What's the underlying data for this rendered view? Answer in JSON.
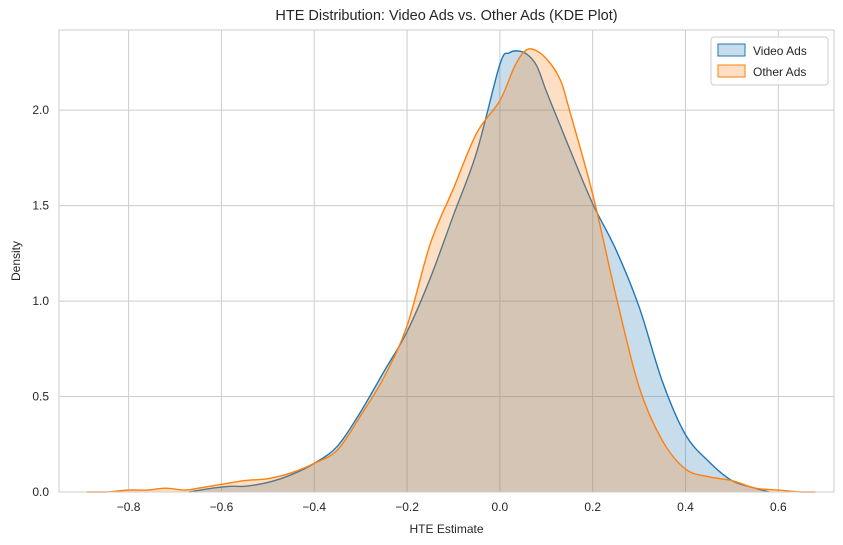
{
  "chart_data": {
    "type": "area",
    "title": "HTE Distribution: Video Ads vs. Other Ads (KDE Plot)",
    "xlabel": "HTE Estimate",
    "ylabel": "Density",
    "xlim": [
      -0.95,
      0.72
    ],
    "ylim": [
      0,
      2.42
    ],
    "xticks": [
      -0.8,
      -0.6,
      -0.4,
      -0.2,
      0.0,
      0.2,
      0.4,
      0.6
    ],
    "xtick_labels": [
      "−0.8",
      "−0.6",
      "−0.4",
      "−0.2",
      "0.0",
      "0.2",
      "0.4",
      "0.6"
    ],
    "yticks": [
      0.0,
      0.5,
      1.0,
      1.5,
      2.0
    ],
    "ytick_labels": [
      "0.0",
      "0.5",
      "1.0",
      "1.5",
      "2.0"
    ],
    "grid": true,
    "legend_position": "top-right",
    "series": [
      {
        "name": "Video Ads",
        "color": "#1f77b4",
        "fill_opacity": 0.25,
        "x": [
          -0.67,
          -0.62,
          -0.58,
          -0.55,
          -0.5,
          -0.45,
          -0.4,
          -0.35,
          -0.3,
          -0.25,
          -0.2,
          -0.15,
          -0.1,
          -0.05,
          0.0,
          0.02,
          0.04,
          0.06,
          0.08,
          0.1,
          0.13,
          0.15,
          0.2,
          0.25,
          0.3,
          0.35,
          0.4,
          0.45,
          0.5,
          0.55,
          0.58
        ],
        "y": [
          0.0,
          0.02,
          0.03,
          0.03,
          0.05,
          0.09,
          0.15,
          0.24,
          0.42,
          0.63,
          0.84,
          1.12,
          1.45,
          1.78,
          2.24,
          2.3,
          2.31,
          2.29,
          2.23,
          2.1,
          1.92,
          1.8,
          1.51,
          1.27,
          0.97,
          0.58,
          0.3,
          0.16,
          0.06,
          0.02,
          0.0
        ]
      },
      {
        "name": "Other Ads",
        "color": "#ff7f0e",
        "fill_opacity": 0.25,
        "x": [
          -0.89,
          -0.85,
          -0.8,
          -0.76,
          -0.72,
          -0.68,
          -0.65,
          -0.6,
          -0.55,
          -0.5,
          -0.45,
          -0.4,
          -0.35,
          -0.3,
          -0.25,
          -0.2,
          -0.15,
          -0.1,
          -0.05,
          0.0,
          0.03,
          0.05,
          0.07,
          0.1,
          0.13,
          0.15,
          0.2,
          0.25,
          0.3,
          0.35,
          0.4,
          0.45,
          0.5,
          0.55,
          0.6,
          0.65,
          0.68
        ],
        "y": [
          0.0,
          0.0,
          0.01,
          0.01,
          0.02,
          0.01,
          0.02,
          0.04,
          0.06,
          0.07,
          0.1,
          0.15,
          0.22,
          0.4,
          0.6,
          0.87,
          1.3,
          1.59,
          1.88,
          2.05,
          2.22,
          2.3,
          2.32,
          2.27,
          2.16,
          2.0,
          1.56,
          1.03,
          0.55,
          0.27,
          0.12,
          0.08,
          0.06,
          0.02,
          0.01,
          0.0,
          0.0
        ]
      }
    ]
  }
}
